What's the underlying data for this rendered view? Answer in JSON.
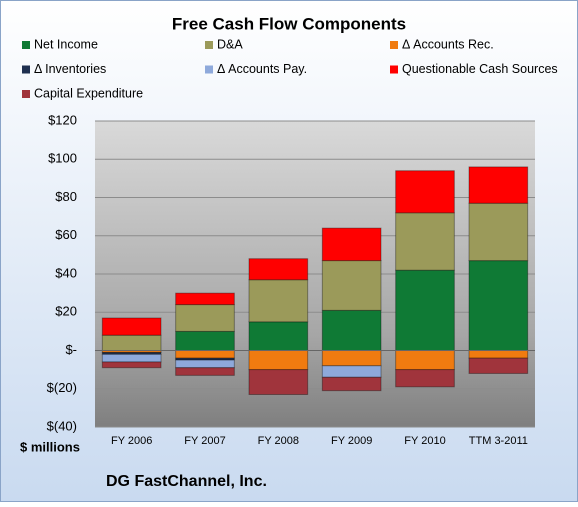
{
  "chart_data": {
    "type": "stacked-bar",
    "title": "Free Cash Flow Components",
    "categories": [
      "FY 2006",
      "FY 2007",
      "FY 2008",
      "FY 2009",
      "FY 2010",
      "TTM 3-2011"
    ],
    "series": [
      {
        "name": "Net Income",
        "color": "#0f7a35",
        "values": [
          0,
          10,
          15,
          21,
          42,
          47
        ]
      },
      {
        "name": "D&A",
        "color": "#9b9a5a",
        "values": [
          8,
          14,
          22,
          26,
          30,
          30
        ]
      },
      {
        "name": "Δ Accounts Rec.",
        "color": "#f07b10",
        "values": [
          -1,
          -4,
          -10,
          -8,
          -10,
          -4
        ]
      },
      {
        "name": "Δ Inventories",
        "color": "#1f3050",
        "values": [
          -1,
          -1,
          0,
          0,
          0,
          0
        ]
      },
      {
        "name": "Δ Accounts Pay.",
        "color": "#8ea9db",
        "values": [
          -4,
          -4,
          0,
          -6,
          0,
          0
        ]
      },
      {
        "name": "Questionable Cash Sources",
        "color": "#ff0000",
        "values": [
          9,
          6,
          11,
          17,
          22,
          19
        ]
      },
      {
        "name": "Capital Expenditure",
        "color": "#a0343c",
        "values": [
          -3,
          -4,
          -13,
          -7,
          -9,
          -8
        ]
      }
    ],
    "ylim": [
      -40,
      120
    ],
    "yticks": [
      {
        "value": -40,
        "label": "$(40)"
      },
      {
        "value": -20,
        "label": "$(20)"
      },
      {
        "value": 0,
        "label": "$-"
      },
      {
        "value": 20,
        "label": "$20"
      },
      {
        "value": 40,
        "label": "$40"
      },
      {
        "value": 60,
        "label": "$60"
      },
      {
        "value": 80,
        "label": "$80"
      },
      {
        "value": 100,
        "label": "$100"
      },
      {
        "value": 120,
        "label": "$120"
      }
    ],
    "grid": true,
    "y_axis_label": "$ millions",
    "footer": "DG FastChannel, Inc."
  }
}
